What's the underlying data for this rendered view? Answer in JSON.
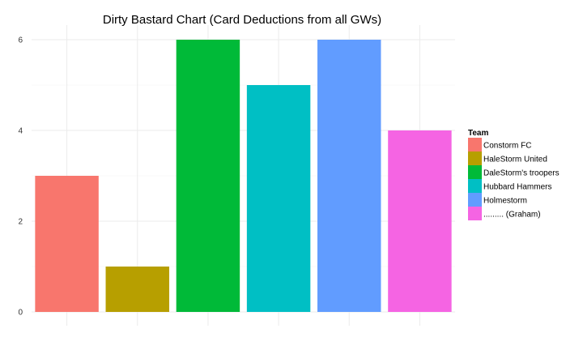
{
  "chart_data": {
    "type": "bar",
    "title": "Dirty Bastard Chart (Card Deductions from all GWs)",
    "xlabel": "",
    "ylabel": "",
    "categories": [
      "Constorm FC",
      "HaleStorm United",
      "DaleStorm's troopers",
      "Hubbard Hammers",
      "Holmestorm",
      "......... (Graham)"
    ],
    "values": [
      3,
      1,
      6,
      5,
      6,
      4
    ],
    "colors": [
      "#F8766D",
      "#B79F00",
      "#00BA38",
      "#00BFC4",
      "#619CFF",
      "#F564E3"
    ],
    "ylim": [
      0,
      6.3
    ],
    "yticks": [
      0,
      2,
      4,
      6
    ],
    "grid": true,
    "legend": {
      "title": "Team",
      "position": "right",
      "entries": [
        "Constorm FC",
        "HaleStorm United",
        "DaleStorm's troopers",
        "Hubbard Hammers",
        "Holmestorm",
        "......... (Graham)"
      ]
    }
  }
}
